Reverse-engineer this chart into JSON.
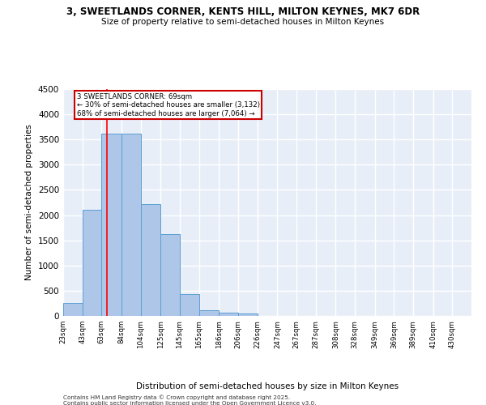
{
  "title": "3, SWEETLANDS CORNER, KENTS HILL, MILTON KEYNES, MK7 6DR",
  "subtitle": "Size of property relative to semi-detached houses in Milton Keynes",
  "xlabel": "Distribution of semi-detached houses by size in Milton Keynes",
  "ylabel": "Number of semi-detached properties",
  "footnote1": "Contains HM Land Registry data © Crown copyright and database right 2025.",
  "footnote2": "Contains public sector information licensed under the Open Government Licence v3.0.",
  "bar_left_edges": [
    23,
    43,
    63,
    84,
    104,
    125,
    145,
    165,
    186,
    206,
    226,
    247,
    267,
    287,
    308,
    328,
    349,
    369,
    389,
    410
  ],
  "bar_widths": [
    20,
    20,
    21,
    20,
    21,
    20,
    20,
    21,
    20,
    20,
    21,
    20,
    20,
    21,
    20,
    21,
    20,
    20,
    21,
    20
  ],
  "bar_heights": [
    265,
    2100,
    3620,
    3620,
    2220,
    1630,
    440,
    105,
    65,
    55,
    0,
    0,
    0,
    0,
    0,
    0,
    0,
    0,
    0,
    0
  ],
  "bar_color": "#aec6e8",
  "bar_edgecolor": "#5a9fd4",
  "bg_color": "#e8eef8",
  "grid_color": "#ffffff",
  "property_line_x": 69,
  "property_label": "3 SWEETLANDS CORNER: 69sqm",
  "pct_smaller": 30,
  "n_smaller": 3132,
  "pct_larger": 68,
  "n_larger": 7064,
  "annotation_box_color": "#cc0000",
  "ylim": [
    0,
    4500
  ],
  "yticks": [
    0,
    500,
    1000,
    1500,
    2000,
    2500,
    3000,
    3500,
    4000,
    4500
  ],
  "xtick_labels": [
    "23sqm",
    "43sqm",
    "63sqm",
    "84sqm",
    "104sqm",
    "125sqm",
    "145sqm",
    "165sqm",
    "186sqm",
    "206sqm",
    "226sqm",
    "247sqm",
    "267sqm",
    "287sqm",
    "308sqm",
    "328sqm",
    "349sqm",
    "369sqm",
    "389sqm",
    "410sqm",
    "430sqm"
  ],
  "xtick_positions": [
    23,
    43,
    63,
    84,
    104,
    125,
    145,
    165,
    186,
    206,
    226,
    247,
    267,
    287,
    308,
    328,
    349,
    369,
    389,
    410,
    430
  ]
}
